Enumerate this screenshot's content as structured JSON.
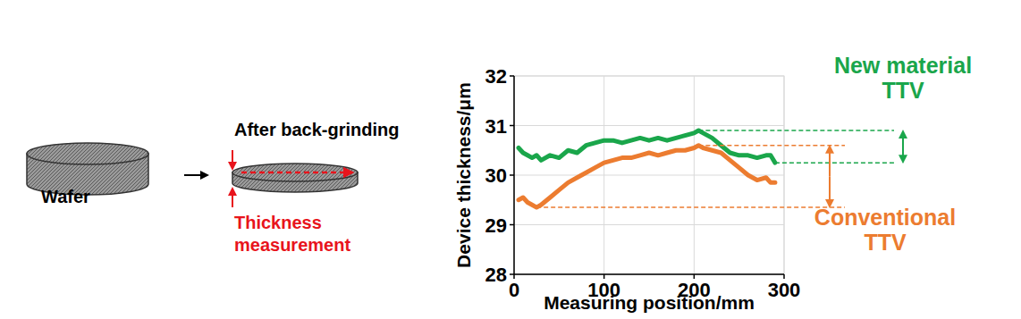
{
  "diagram": {
    "wafer_label": "Wafer",
    "step_label": "After back-grinding",
    "measurement_label": [
      "Thickness",
      "measurement"
    ]
  },
  "chart_data": {
    "type": "line",
    "x_label": "Measuring position/mm",
    "y_label": "Device thickness/μm",
    "xlim": [
      0,
      300
    ],
    "xticks": [
      0,
      100,
      200,
      300
    ],
    "ylim": [
      28,
      32
    ],
    "yticks": [
      28,
      29,
      30,
      31,
      32
    ],
    "grid": true,
    "x": [
      5,
      10,
      15,
      20,
      25,
      30,
      40,
      50,
      60,
      70,
      80,
      90,
      100,
      110,
      120,
      130,
      140,
      150,
      160,
      170,
      180,
      190,
      200,
      205,
      210,
      220,
      230,
      240,
      250,
      260,
      270,
      280,
      285,
      290
    ],
    "series": [
      {
        "name": "New material",
        "color": "#1aa64b",
        "line_style": "solid",
        "values": [
          30.55,
          30.45,
          30.4,
          30.35,
          30.4,
          30.3,
          30.4,
          30.35,
          30.5,
          30.45,
          30.6,
          30.65,
          30.7,
          30.7,
          30.65,
          30.7,
          30.75,
          30.7,
          30.75,
          30.7,
          30.75,
          30.8,
          30.85,
          30.9,
          30.85,
          30.75,
          30.6,
          30.45,
          30.4,
          30.4,
          30.35,
          30.4,
          30.4,
          30.25
        ]
      },
      {
        "name": "Conventional",
        "color": "#ec7c30",
        "line_style": "solid",
        "values": [
          29.5,
          29.55,
          29.45,
          29.4,
          29.35,
          29.4,
          29.55,
          29.7,
          29.85,
          29.95,
          30.05,
          30.15,
          30.25,
          30.3,
          30.35,
          30.35,
          30.4,
          30.45,
          30.4,
          30.45,
          30.5,
          30.5,
          30.55,
          30.6,
          30.55,
          30.5,
          30.45,
          30.3,
          30.15,
          30.0,
          29.9,
          29.95,
          29.85,
          29.85
        ]
      }
    ],
    "annotations": [
      {
        "text": [
          "New material",
          "TTV"
        ],
        "color": "#1aa64b",
        "max": 30.9,
        "min": 30.25
      },
      {
        "text": [
          "Conventional",
          "TTV"
        ],
        "color": "#ec7c30",
        "max": 30.6,
        "min": 29.35
      }
    ]
  }
}
